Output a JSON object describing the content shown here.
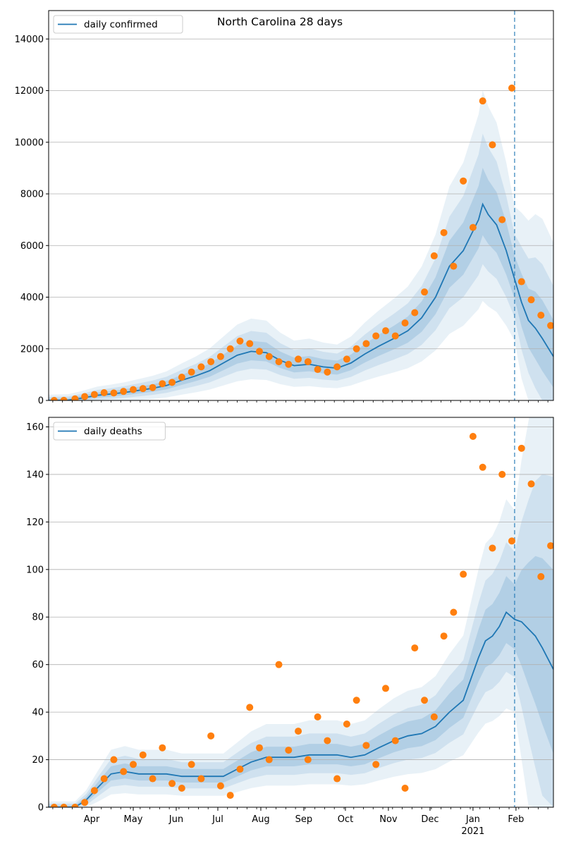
{
  "chart_data": [
    {
      "type": "line",
      "title": "North Carolina 28 days",
      "xlabel": "",
      "ylabel": "",
      "x_range": [
        "2020-03-01",
        "2021-02-28"
      ],
      "ylim": [
        0,
        15100
      ],
      "yticks": [
        0,
        2000,
        4000,
        6000,
        8000,
        10000,
        12000,
        14000
      ],
      "ytick_labels": [
        "0",
        "2000",
        "4000",
        "6000",
        "8000",
        "10000",
        "12000",
        "14000"
      ],
      "grid": "horizontal",
      "legend_position": "upper left",
      "forecast_start": "2021-01-31",
      "colors": {
        "line": "#1f77b4",
        "points": "#ff7f0e",
        "band": "#1f77b4",
        "forecast_line": "#1f77b4"
      },
      "series": [
        {
          "name": "daily confirmed",
          "kind": "line",
          "points": [
            [
              "2020-03-01",
              0
            ],
            [
              "2020-03-15",
              10
            ],
            [
              "2020-03-25",
              90
            ],
            [
              "2020-04-05",
              200
            ],
            [
              "2020-04-15",
              250
            ],
            [
              "2020-04-25",
              310
            ],
            [
              "2020-05-05",
              390
            ],
            [
              "2020-05-15",
              470
            ],
            [
              "2020-05-25",
              580
            ],
            [
              "2020-06-05",
              780
            ],
            [
              "2020-06-15",
              950
            ],
            [
              "2020-06-25",
              1150
            ],
            [
              "2020-07-05",
              1450
            ],
            [
              "2020-07-15",
              1750
            ],
            [
              "2020-07-25",
              1900
            ],
            [
              "2020-08-05",
              1850
            ],
            [
              "2020-08-15",
              1550
            ],
            [
              "2020-08-25",
              1350
            ],
            [
              "2020-09-05",
              1400
            ],
            [
              "2020-09-15",
              1300
            ],
            [
              "2020-09-25",
              1250
            ],
            [
              "2020-10-05",
              1450
            ],
            [
              "2020-10-15",
              1800
            ],
            [
              "2020-10-25",
              2100
            ],
            [
              "2020-11-05",
              2400
            ],
            [
              "2020-11-15",
              2700
            ],
            [
              "2020-11-25",
              3200
            ],
            [
              "2020-12-05",
              4000
            ],
            [
              "2020-12-15",
              5200
            ],
            [
              "2020-12-25",
              5800
            ],
            [
              "2021-01-05",
              7000
            ],
            [
              "2021-01-08",
              7600
            ],
            [
              "2021-01-12",
              7200
            ],
            [
              "2021-01-18",
              6800
            ],
            [
              "2021-01-25",
              5800
            ],
            [
              "2021-01-31",
              4700
            ],
            [
              "2021-02-05",
              3800
            ],
            [
              "2021-02-10",
              3100
            ],
            [
              "2021-02-15",
              2800
            ],
            [
              "2021-02-20",
              2400
            ],
            [
              "2021-02-28",
              1700
            ]
          ]
        },
        {
          "name": "",
          "kind": "points",
          "points": [
            [
              "2020-03-05",
              0
            ],
            [
              "2020-03-12",
              5
            ],
            [
              "2020-03-20",
              60
            ],
            [
              "2020-03-27",
              150
            ],
            [
              "2020-04-03",
              230
            ],
            [
              "2020-04-10",
              300
            ],
            [
              "2020-04-17",
              290
            ],
            [
              "2020-04-24",
              350
            ],
            [
              "2020-05-01",
              420
            ],
            [
              "2020-05-08",
              460
            ],
            [
              "2020-05-15",
              500
            ],
            [
              "2020-05-22",
              650
            ],
            [
              "2020-05-29",
              700
            ],
            [
              "2020-06-05",
              900
            ],
            [
              "2020-06-12",
              1100
            ],
            [
              "2020-06-19",
              1300
            ],
            [
              "2020-06-26",
              1500
            ],
            [
              "2020-07-03",
              1700
            ],
            [
              "2020-07-10",
              2000
            ],
            [
              "2020-07-17",
              2300
            ],
            [
              "2020-07-24",
              2200
            ],
            [
              "2020-07-31",
              1900
            ],
            [
              "2020-08-07",
              1700
            ],
            [
              "2020-08-14",
              1500
            ],
            [
              "2020-08-21",
              1400
            ],
            [
              "2020-08-28",
              1600
            ],
            [
              "2020-09-04",
              1500
            ],
            [
              "2020-09-11",
              1200
            ],
            [
              "2020-09-18",
              1100
            ],
            [
              "2020-09-25",
              1300
            ],
            [
              "2020-10-02",
              1600
            ],
            [
              "2020-10-09",
              2000
            ],
            [
              "2020-10-16",
              2200
            ],
            [
              "2020-10-23",
              2500
            ],
            [
              "2020-10-30",
              2700
            ],
            [
              "2020-11-06",
              2500
            ],
            [
              "2020-11-13",
              3000
            ],
            [
              "2020-11-20",
              3400
            ],
            [
              "2020-11-27",
              4200
            ],
            [
              "2020-12-04",
              5600
            ],
            [
              "2020-12-11",
              6500
            ],
            [
              "2020-12-18",
              5200
            ],
            [
              "2020-12-25",
              8500
            ],
            [
              "2021-01-01",
              6700
            ],
            [
              "2021-01-08",
              11600
            ],
            [
              "2021-01-15",
              9900
            ],
            [
              "2021-01-22",
              7000
            ],
            [
              "2021-01-29",
              12100
            ],
            [
              "2021-02-05",
              4600
            ],
            [
              "2021-02-12",
              3900
            ],
            [
              "2021-02-19",
              3300
            ],
            [
              "2021-02-26",
              2900
            ]
          ]
        }
      ]
    },
    {
      "type": "line",
      "title": "",
      "xlabel": "",
      "ylabel": "",
      "x_range": [
        "2020-03-01",
        "2021-02-28"
      ],
      "ylim": [
        0,
        164
      ],
      "yticks": [
        0,
        20,
        40,
        60,
        80,
        100,
        120,
        140,
        160
      ],
      "ytick_labels": [
        "0",
        "20",
        "40",
        "60",
        "80",
        "100",
        "120",
        "140",
        "160"
      ],
      "xticks": [
        "2020-04-01",
        "2020-05-01",
        "2020-06-01",
        "2020-07-01",
        "2020-08-01",
        "2020-09-01",
        "2020-10-01",
        "2020-11-01",
        "2020-12-01",
        "2021-01-01",
        "2021-02-01"
      ],
      "xtick_labels": [
        "Apr",
        "May",
        "Jun",
        "Jul",
        "Aug",
        "Sep",
        "Oct",
        "Nov",
        "Dec",
        "Jan",
        "Feb"
      ],
      "year_label": "2021",
      "grid": "horizontal",
      "legend_position": "upper left",
      "forecast_start": "2021-01-31",
      "colors": {
        "line": "#1f77b4",
        "points": "#ff7f0e",
        "band": "#1f77b4",
        "forecast_line": "#1f77b4"
      },
      "series": [
        {
          "name": "daily deaths",
          "kind": "line",
          "points": [
            [
              "2020-03-01",
              0
            ],
            [
              "2020-03-20",
              0
            ],
            [
              "2020-03-28",
              3
            ],
            [
              "2020-04-05",
              8
            ],
            [
              "2020-04-15",
              14
            ],
            [
              "2020-04-25",
              15
            ],
            [
              "2020-05-05",
              14
            ],
            [
              "2020-05-15",
              14
            ],
            [
              "2020-05-25",
              14
            ],
            [
              "2020-06-05",
              13
            ],
            [
              "2020-06-15",
              13
            ],
            [
              "2020-06-25",
              13
            ],
            [
              "2020-07-05",
              13
            ],
            [
              "2020-07-15",
              16
            ],
            [
              "2020-07-25",
              19
            ],
            [
              "2020-08-05",
              21
            ],
            [
              "2020-08-15",
              21
            ],
            [
              "2020-08-25",
              21
            ],
            [
              "2020-09-05",
              22
            ],
            [
              "2020-09-15",
              22
            ],
            [
              "2020-09-25",
              22
            ],
            [
              "2020-10-05",
              21
            ],
            [
              "2020-10-15",
              22
            ],
            [
              "2020-10-25",
              25
            ],
            [
              "2020-11-05",
              28
            ],
            [
              "2020-11-15",
              30
            ],
            [
              "2020-11-25",
              31
            ],
            [
              "2020-12-05",
              34
            ],
            [
              "2020-12-15",
              40
            ],
            [
              "2020-12-25",
              45
            ],
            [
              "2021-01-05",
              63
            ],
            [
              "2021-01-10",
              70
            ],
            [
              "2021-01-15",
              72
            ],
            [
              "2021-01-20",
              76
            ],
            [
              "2021-01-25",
              82
            ],
            [
              "2021-01-31",
              79
            ],
            [
              "2021-02-05",
              78
            ],
            [
              "2021-02-10",
              75
            ],
            [
              "2021-02-15",
              72
            ],
            [
              "2021-02-20",
              67
            ],
            [
              "2021-02-28",
              58
            ]
          ]
        },
        {
          "name": "",
          "kind": "points",
          "points": [
            [
              "2020-03-05",
              0
            ],
            [
              "2020-03-12",
              0
            ],
            [
              "2020-03-20",
              0
            ],
            [
              "2020-03-27",
              2
            ],
            [
              "2020-04-03",
              7
            ],
            [
              "2020-04-10",
              12
            ],
            [
              "2020-04-17",
              20
            ],
            [
              "2020-04-24",
              15
            ],
            [
              "2020-05-01",
              18
            ],
            [
              "2020-05-08",
              22
            ],
            [
              "2020-05-15",
              12
            ],
            [
              "2020-05-22",
              25
            ],
            [
              "2020-05-29",
              10
            ],
            [
              "2020-06-05",
              8
            ],
            [
              "2020-06-12",
              18
            ],
            [
              "2020-06-19",
              12
            ],
            [
              "2020-06-26",
              30
            ],
            [
              "2020-07-03",
              9
            ],
            [
              "2020-07-10",
              5
            ],
            [
              "2020-07-17",
              16
            ],
            [
              "2020-07-24",
              42
            ],
            [
              "2020-07-31",
              25
            ],
            [
              "2020-08-07",
              20
            ],
            [
              "2020-08-14",
              60
            ],
            [
              "2020-08-21",
              24
            ],
            [
              "2020-08-28",
              32
            ],
            [
              "2020-09-04",
              20
            ],
            [
              "2020-09-11",
              38
            ],
            [
              "2020-09-18",
              28
            ],
            [
              "2020-09-25",
              12
            ],
            [
              "2020-10-02",
              35
            ],
            [
              "2020-10-09",
              45
            ],
            [
              "2020-10-16",
              26
            ],
            [
              "2020-10-23",
              18
            ],
            [
              "2020-10-30",
              50
            ],
            [
              "2020-11-06",
              28
            ],
            [
              "2020-11-13",
              8
            ],
            [
              "2020-11-20",
              67
            ],
            [
              "2020-11-27",
              45
            ],
            [
              "2020-12-04",
              38
            ],
            [
              "2020-12-11",
              72
            ],
            [
              "2020-12-18",
              82
            ],
            [
              "2020-12-25",
              98
            ],
            [
              "2021-01-01",
              156
            ],
            [
              "2021-01-08",
              143
            ],
            [
              "2021-01-15",
              109
            ],
            [
              "2021-01-22",
              140
            ],
            [
              "2021-01-29",
              112
            ],
            [
              "2021-02-05",
              151
            ],
            [
              "2021-02-12",
              136
            ],
            [
              "2021-02-19",
              97
            ],
            [
              "2021-02-26",
              110
            ]
          ]
        }
      ]
    }
  ]
}
